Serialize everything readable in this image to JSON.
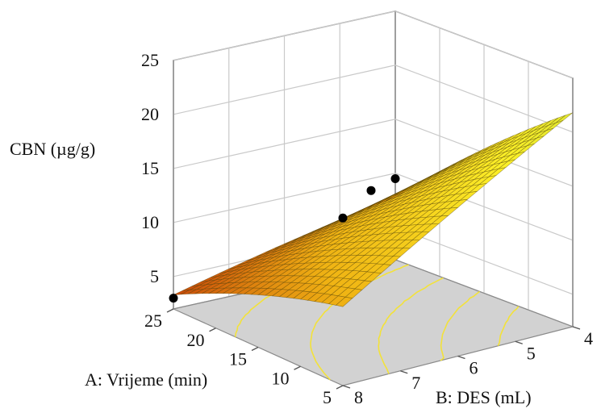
{
  "chart_data": {
    "type": "surface",
    "zlabel": "CBN (µg/g)",
    "xlabel": "A: Vrijeme (min)",
    "ylabel": "B: DES (mL)",
    "zticks": [
      "5",
      "10",
      "15",
      "20",
      "25"
    ],
    "xticks": [
      "25",
      "20",
      "15",
      "10",
      "5"
    ],
    "yticks": [
      "8",
      "7",
      "6",
      "5",
      "4"
    ],
    "zlim": [
      2,
      25
    ],
    "xlim": [
      5,
      25
    ],
    "ylim": [
      4,
      8
    ],
    "surface_corners": {
      "time25_des8": 3.5,
      "time25_des4": 8.0,
      "time5_des8": 9.5,
      "time5_des4": 22.0
    },
    "design_points": [
      {
        "time": 25,
        "des": 8,
        "cbn": 3.0
      },
      {
        "time": 25,
        "des": 4,
        "cbn": 9.5
      },
      {
        "time": 15,
        "des": 6,
        "cbn": 14.0
      },
      {
        "time": 5,
        "des": 8,
        "cbn": 17.5
      }
    ],
    "grid": true
  }
}
